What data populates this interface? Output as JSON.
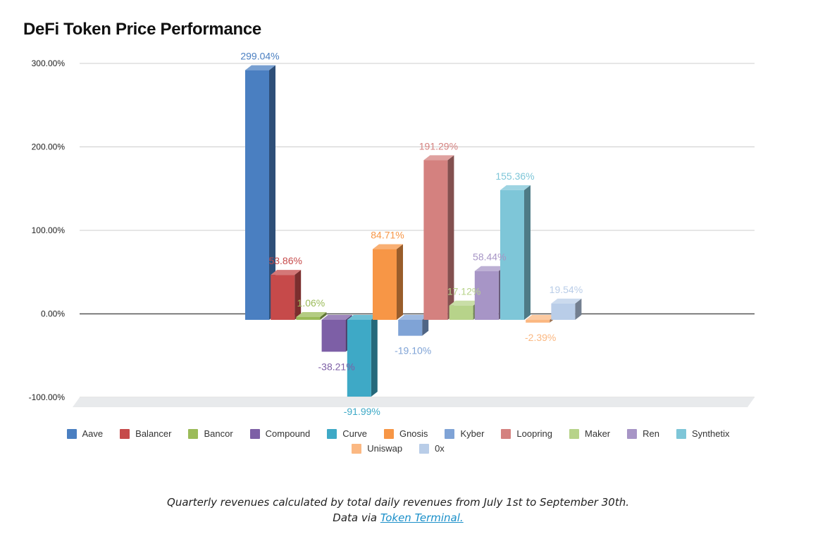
{
  "chart_data": {
    "type": "bar",
    "title": "DeFi Token Price Performance",
    "xlabel": "",
    "ylabel": "",
    "ylim": [
      -100,
      300
    ],
    "yticks": [
      "300.00%",
      "200.00%",
      "100.00%",
      "0.00%",
      "-100.00%"
    ],
    "ytick_values": [
      300,
      200,
      100,
      0,
      -100
    ],
    "legend_position": "bottom",
    "series": [
      {
        "name": "Aave",
        "value": 299.04,
        "label": "299.04%",
        "color": "#4a7fc1"
      },
      {
        "name": "Balancer",
        "value": 53.86,
        "label": "53.86%",
        "color": "#c64a4a"
      },
      {
        "name": "Bancor",
        "value": 1.06,
        "label": "1.06%",
        "color": "#9bbb59"
      },
      {
        "name": "Compound",
        "value": -38.21,
        "label": "-38.21%",
        "color": "#7d5fa6"
      },
      {
        "name": "Curve",
        "value": -91.99,
        "label": "-91.99%",
        "color": "#3ea9c6"
      },
      {
        "name": "Gnosis",
        "value": 84.71,
        "label": "84.71%",
        "color": "#f79646"
      },
      {
        "name": "Kyber",
        "value": -19.1,
        "label": "-19.10%",
        "color": "#7fa3d6"
      },
      {
        "name": "Loopring",
        "value": 191.29,
        "label": "191.29%",
        "color": "#d4817f"
      },
      {
        "name": "Maker",
        "value": 17.12,
        "label": "17.12%",
        "color": "#b7d38a"
      },
      {
        "name": "Ren",
        "value": 58.44,
        "label": "58.44%",
        "color": "#a795c6"
      },
      {
        "name": "Synthetix",
        "value": 155.36,
        "label": "155.36%",
        "color": "#7ec6d8"
      },
      {
        "name": "Uniswap",
        "value": -2.39,
        "label": "-2.39%",
        "color": "#fbb882"
      },
      {
        "name": "0x",
        "value": 19.54,
        "label": "19.54%",
        "color": "#b9cde8"
      }
    ]
  },
  "caption": {
    "line1": "Quarterly revenues calculated by total daily revenues from July 1st to September 30th.",
    "line2_prefix": "Data via ",
    "link_text": "Token Terminal."
  }
}
